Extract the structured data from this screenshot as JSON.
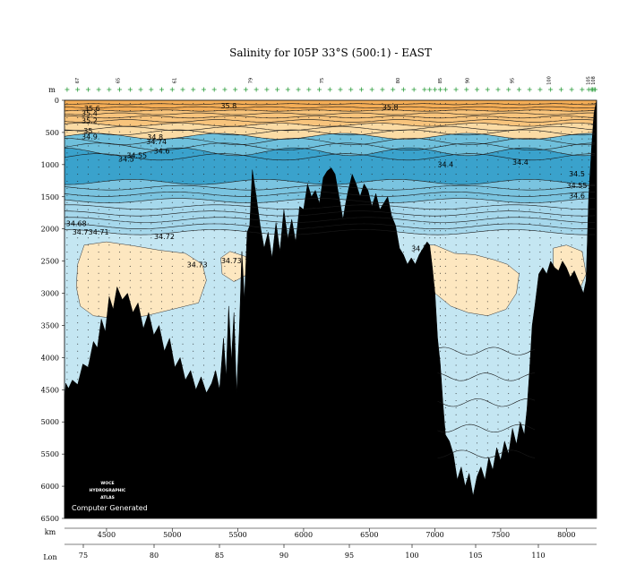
{
  "chart_data": {
    "type": "heatmap",
    "title": "Salinity for I05P 33°S (500:1) - EAST",
    "credit": "Computer Generated",
    "logo_lines": [
      "WOCE",
      "HYDROGRAPHIC",
      "ATLAS"
    ],
    "depth_axis": {
      "label": "m",
      "range": [
        0,
        6500
      ],
      "ticks": [
        0,
        500,
        1000,
        1500,
        2000,
        2500,
        3000,
        3500,
        4000,
        4500,
        5000,
        5500,
        6000,
        6500
      ],
      "tick_labels": [
        "0",
        "500",
        "1000",
        "1500",
        "2000",
        "2500",
        "3000",
        "3500",
        "4000",
        "4500",
        "5000",
        "5500",
        "6000",
        "6500"
      ]
    },
    "distance_axis": {
      "label": "km",
      "range": [
        4180,
        8230
      ],
      "ticks": [
        4500,
        5000,
        5500,
        6000,
        6500,
        7000,
        7500,
        8000
      ],
      "tick_labels": [
        "4500",
        "5000",
        "5500",
        "6000",
        "6500",
        "7000",
        "7500",
        "8000"
      ]
    },
    "longitude_axis": {
      "label": "Lon",
      "ticks": [
        75,
        80,
        85,
        90,
        95,
        100,
        105,
        110
      ],
      "tick_labels": [
        "75",
        "80",
        "85",
        "90",
        "95",
        "100",
        "105",
        "110"
      ]
    },
    "station_numbers": [
      {
        "km": 4290,
        "label": "67"
      },
      {
        "km": 4600,
        "label": "65"
      },
      {
        "km": 5030,
        "label": "61"
      },
      {
        "km": 5610,
        "label": "79"
      },
      {
        "km": 6150,
        "label": "75"
      },
      {
        "km": 6730,
        "label": "80"
      },
      {
        "km": 7050,
        "label": "85"
      },
      {
        "km": 7260,
        "label": "90"
      },
      {
        "km": 7600,
        "label": "95"
      },
      {
        "km": 7880,
        "label": "100"
      },
      {
        "km": 8180,
        "label": "105"
      },
      {
        "km": 8215,
        "label": "108"
      }
    ],
    "station_km": [
      4200,
      4280,
      4360,
      4440,
      4520,
      4600,
      4680,
      4760,
      4840,
      4920,
      5000,
      5080,
      5160,
      5240,
      5320,
      5400,
      5480,
      5560,
      5640,
      5720,
      5800,
      5880,
      5960,
      6040,
      6120,
      6200,
      6280,
      6360,
      6440,
      6520,
      6600,
      6680,
      6760,
      6840,
      6920,
      6960,
      7000,
      7040,
      7080,
      7160,
      7240,
      7320,
      7400,
      7480,
      7560,
      7640,
      7720,
      7800,
      7880,
      7960,
      8040,
      8120,
      8170,
      8190,
      8200,
      8210,
      8220
    ],
    "salinity_bands": [
      {
        "min": 35.5,
        "max": 36.0,
        "color": "#f4ad56"
      },
      {
        "min": 35.0,
        "max": 35.5,
        "color": "#f8c47c"
      },
      {
        "min": 34.8,
        "max": 35.0,
        "color": "#fbdba4"
      },
      {
        "min": 34.6,
        "max": 34.8,
        "color": "#6fc0dc"
      },
      {
        "min": 34.4,
        "max": 34.6,
        "color": "#3aa2cc"
      },
      {
        "min": 34.5,
        "max": 34.6,
        "color": "#7ac4e0"
      },
      {
        "min": 34.6,
        "max": 34.7,
        "color": "#a6d8ec"
      },
      {
        "min": 34.7,
        "max": 34.72,
        "color": "#c4e6f2"
      },
      {
        "min": 34.72,
        "max": 34.74,
        "color": "#fde7c0"
      }
    ],
    "contour_labels": [
      {
        "km": 4390,
        "depth": 130,
        "text": "35.6"
      },
      {
        "km": 4370,
        "depth": 210,
        "text": "35.4"
      },
      {
        "km": 4370,
        "depth": 320,
        "text": "35.2"
      },
      {
        "km": 4360,
        "depth": 480,
        "text": "35"
      },
      {
        "km": 4370,
        "depth": 570,
        "text": "34.9"
      },
      {
        "km": 5430,
        "depth": 90,
        "text": "35.8"
      },
      {
        "km": 6660,
        "depth": 110,
        "text": "35.8"
      },
      {
        "km": 4870,
        "depth": 580,
        "text": "34.8"
      },
      {
        "km": 4880,
        "depth": 650,
        "text": "34.74"
      },
      {
        "km": 4920,
        "depth": 790,
        "text": "34.6"
      },
      {
        "km": 4730,
        "depth": 860,
        "text": "34.55"
      },
      {
        "km": 4650,
        "depth": 920,
        "text": "34.5"
      },
      {
        "km": 7080,
        "depth": 1000,
        "text": "34.4"
      },
      {
        "km": 7650,
        "depth": 970,
        "text": "34.4"
      },
      {
        "km": 8080,
        "depth": 1150,
        "text": "34.5"
      },
      {
        "km": 8080,
        "depth": 1330,
        "text": "34.55"
      },
      {
        "km": 8080,
        "depth": 1490,
        "text": "34.6"
      },
      {
        "km": 4270,
        "depth": 1920,
        "text": "34.68"
      },
      {
        "km": 4300,
        "depth": 2050,
        "text": "34.7"
      },
      {
        "km": 4440,
        "depth": 2050,
        "text": "34.71"
      },
      {
        "km": 4940,
        "depth": 2120,
        "text": "34.72"
      },
      {
        "km": 5190,
        "depth": 2560,
        "text": "34.73"
      },
      {
        "km": 5450,
        "depth": 2500,
        "text": "34.73"
      },
      {
        "km": 6880,
        "depth": 2310,
        "text": "34.7"
      }
    ],
    "bathymetry": [
      [
        4180,
        4650
      ],
      [
        4190,
        4400
      ],
      [
        4210,
        4480
      ],
      [
        4240,
        4350
      ],
      [
        4280,
        4420
      ],
      [
        4320,
        4100
      ],
      [
        4360,
        4150
      ],
      [
        4400,
        3750
      ],
      [
        4430,
        3850
      ],
      [
        4460,
        3400
      ],
      [
        4490,
        3600
      ],
      [
        4520,
        3050
      ],
      [
        4550,
        3250
      ],
      [
        4580,
        2900
      ],
      [
        4620,
        3100
      ],
      [
        4660,
        3000
      ],
      [
        4700,
        3300
      ],
      [
        4740,
        3150
      ],
      [
        4780,
        3550
      ],
      [
        4820,
        3300
      ],
      [
        4860,
        3650
      ],
      [
        4900,
        3500
      ],
      [
        4940,
        3900
      ],
      [
        4980,
        3700
      ],
      [
        5020,
        4150
      ],
      [
        5060,
        4000
      ],
      [
        5100,
        4350
      ],
      [
        5140,
        4200
      ],
      [
        5180,
        4500
      ],
      [
        5220,
        4300
      ],
      [
        5260,
        4550
      ],
      [
        5300,
        4400
      ],
      [
        5330,
        4200
      ],
      [
        5360,
        4500
      ],
      [
        5390,
        3700
      ],
      [
        5410,
        4300
      ],
      [
        5430,
        3200
      ],
      [
        5450,
        4050
      ],
      [
        5470,
        3300
      ],
      [
        5490,
        4550
      ],
      [
        5510,
        3600
      ],
      [
        5530,
        2350
      ],
      [
        5550,
        3100
      ],
      [
        5570,
        2050
      ],
      [
        5590,
        1950
      ],
      [
        5610,
        1080
      ],
      [
        5640,
        1500
      ],
      [
        5670,
        1950
      ],
      [
        5700,
        2300
      ],
      [
        5730,
        2050
      ],
      [
        5760,
        2450
      ],
      [
        5790,
        1900
      ],
      [
        5820,
        2350
      ],
      [
        5850,
        1700
      ],
      [
        5880,
        2150
      ],
      [
        5910,
        1850
      ],
      [
        5940,
        2200
      ],
      [
        5970,
        1650
      ],
      [
        6000,
        1700
      ],
      [
        6030,
        1300
      ],
      [
        6060,
        1500
      ],
      [
        6090,
        1400
      ],
      [
        6120,
        1600
      ],
      [
        6150,
        1200
      ],
      [
        6180,
        1100
      ],
      [
        6210,
        1050
      ],
      [
        6240,
        1150
      ],
      [
        6270,
        1500
      ],
      [
        6300,
        1850
      ],
      [
        6320,
        1600
      ],
      [
        6340,
        1400
      ],
      [
        6370,
        1150
      ],
      [
        6400,
        1300
      ],
      [
        6430,
        1500
      ],
      [
        6460,
        1300
      ],
      [
        6490,
        1400
      ],
      [
        6520,
        1650
      ],
      [
        6550,
        1450
      ],
      [
        6580,
        1700
      ],
      [
        6610,
        1600
      ],
      [
        6640,
        1500
      ],
      [
        6670,
        1800
      ],
      [
        6700,
        1950
      ],
      [
        6730,
        2300
      ],
      [
        6760,
        2400
      ],
      [
        6790,
        2550
      ],
      [
        6820,
        2450
      ],
      [
        6850,
        2550
      ],
      [
        6880,
        2400
      ],
      [
        6910,
        2300
      ],
      [
        6940,
        2200
      ],
      [
        6960,
        2250
      ],
      [
        6980,
        2600
      ],
      [
        7000,
        3000
      ],
      [
        7020,
        3700
      ],
      [
        7040,
        4100
      ],
      [
        7060,
        4700
      ],
      [
        7080,
        5200
      ],
      [
        7110,
        5300
      ],
      [
        7140,
        5500
      ],
      [
        7170,
        5900
      ],
      [
        7200,
        5700
      ],
      [
        7230,
        6000
      ],
      [
        7260,
        5800
      ],
      [
        7290,
        6150
      ],
      [
        7320,
        5850
      ],
      [
        7350,
        5700
      ],
      [
        7380,
        5900
      ],
      [
        7410,
        5550
      ],
      [
        7440,
        5750
      ],
      [
        7470,
        5400
      ],
      [
        7500,
        5600
      ],
      [
        7530,
        5300
      ],
      [
        7560,
        5500
      ],
      [
        7590,
        5100
      ],
      [
        7620,
        5350
      ],
      [
        7650,
        5000
      ],
      [
        7680,
        5200
      ],
      [
        7700,
        4800
      ],
      [
        7720,
        4200
      ],
      [
        7740,
        3500
      ],
      [
        7760,
        3200
      ],
      [
        7790,
        2700
      ],
      [
        7820,
        2600
      ],
      [
        7850,
        2700
      ],
      [
        7880,
        2500
      ],
      [
        7910,
        2600
      ],
      [
        7940,
        2650
      ],
      [
        7970,
        2500
      ],
      [
        8000,
        2600
      ],
      [
        8030,
        2750
      ],
      [
        8060,
        2650
      ],
      [
        8090,
        2800
      ],
      [
        8110,
        2900
      ],
      [
        8130,
        3000
      ],
      [
        8150,
        2800
      ],
      [
        8170,
        1500
      ],
      [
        8190,
        800
      ],
      [
        8210,
        200
      ],
      [
        8230,
        0
      ]
    ]
  }
}
